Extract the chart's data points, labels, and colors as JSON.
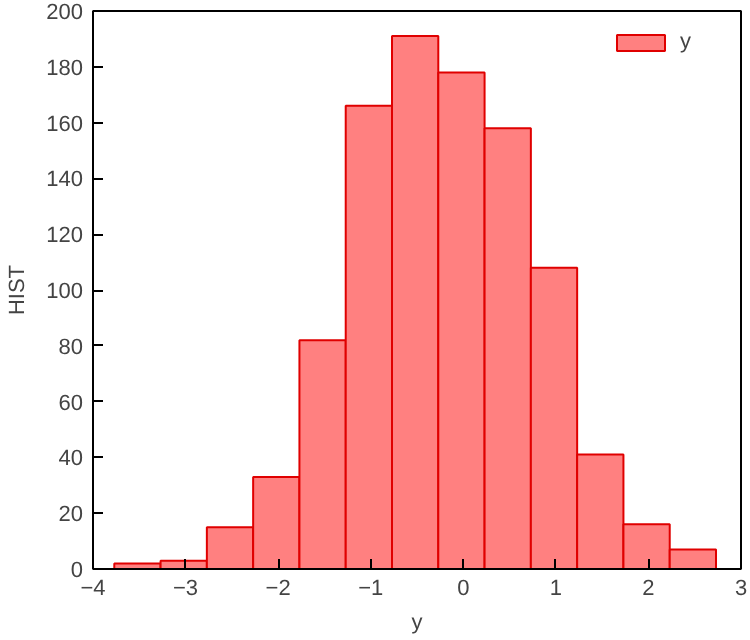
{
  "chart_data": {
    "type": "histogram",
    "xlabel": "y",
    "ylabel": "HIST",
    "bins": [
      -3.77,
      -3.27,
      -2.77,
      -2.27,
      -1.77,
      -1.27,
      -0.77,
      -0.27,
      0.23,
      0.73,
      1.23,
      1.73,
      2.23,
      2.73
    ],
    "series": [
      {
        "name": "y",
        "color": "#ff8080",
        "values": [
          2,
          3,
          15,
          33,
          82,
          166,
          191,
          178,
          158,
          108,
          41,
          16,
          7
        ]
      }
    ],
    "xlim": [
      -4,
      3
    ],
    "xticks": [
      -4,
      -3,
      -2,
      -1,
      0,
      1,
      2,
      3
    ],
    "ylim": [
      0,
      200
    ],
    "yticks": [
      0,
      20,
      40,
      60,
      80,
      100,
      120,
      140,
      160,
      180,
      200
    ],
    "grid": false,
    "legend": "top right"
  }
}
